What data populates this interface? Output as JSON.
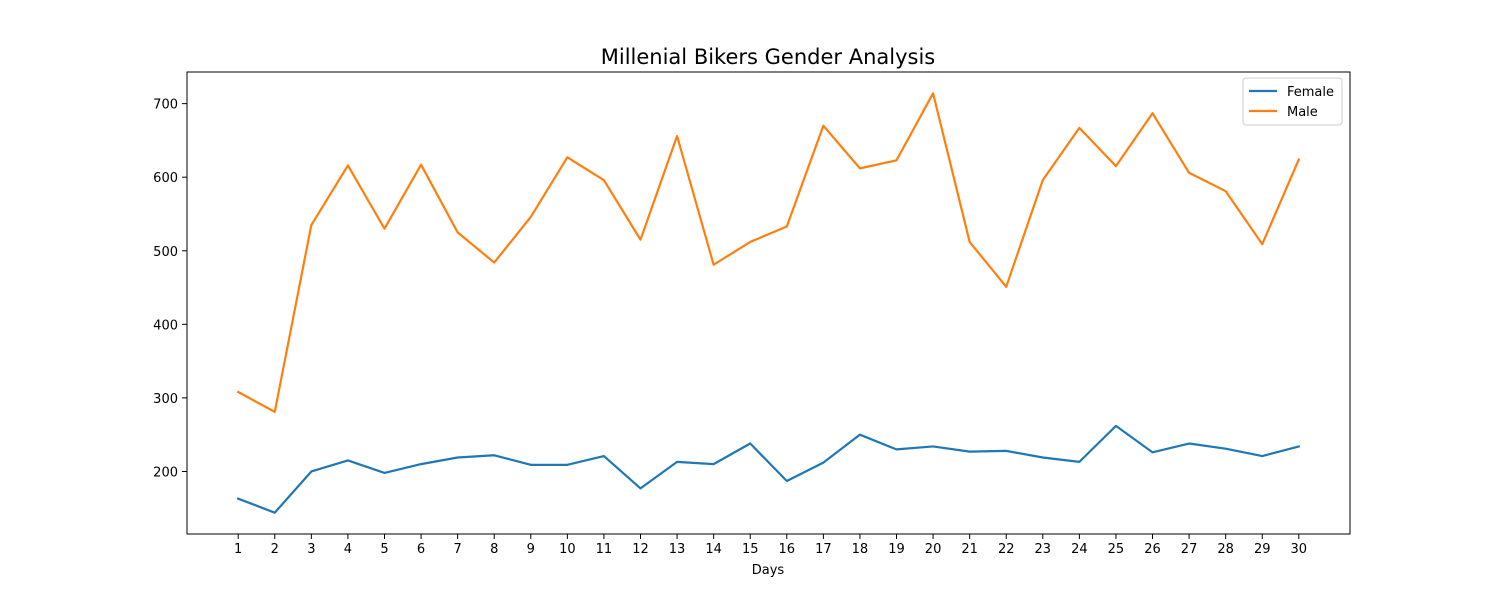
{
  "chart_data": {
    "type": "line",
    "title": "Millenial Bikers Gender Analysis",
    "xlabel": "Days",
    "ylabel": "",
    "x": [
      1,
      2,
      3,
      4,
      5,
      6,
      7,
      8,
      9,
      10,
      11,
      12,
      13,
      14,
      15,
      16,
      17,
      18,
      19,
      20,
      21,
      22,
      23,
      24,
      25,
      26,
      27,
      28,
      29,
      30
    ],
    "xlim": [
      -0.4,
      31.4
    ],
    "ylim": [
      115,
      743
    ],
    "yticks": [
      200,
      300,
      400,
      500,
      600,
      700
    ],
    "grid": false,
    "legend_position": "top-right",
    "series": [
      {
        "name": "Female",
        "color": "#1f77b4",
        "values": [
          163,
          144,
          200,
          215,
          198,
          210,
          219,
          222,
          209,
          209,
          221,
          177,
          213,
          210,
          238,
          187,
          212,
          250,
          230,
          234,
          227,
          228,
          219,
          213,
          262,
          226,
          238,
          231,
          221,
          234
        ]
      },
      {
        "name": "Male",
        "color": "#ff7f0e",
        "values": [
          308,
          281,
          535,
          616,
          530,
          617,
          525,
          484,
          546,
          627,
          596,
          515,
          656,
          481,
          512,
          533,
          670,
          612,
          623,
          714,
          512,
          451,
          596,
          667,
          615,
          687,
          606,
          581,
          509,
          624
        ]
      }
    ]
  }
}
